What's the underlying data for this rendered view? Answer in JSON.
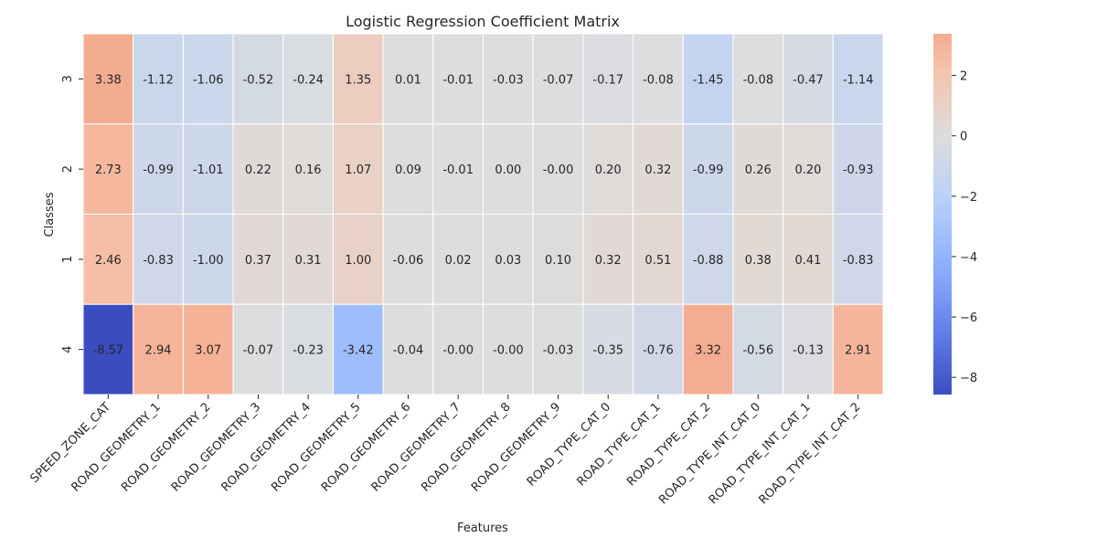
{
  "chart_data": {
    "type": "heatmap",
    "title": "Logistic Regression Coefficient Matrix",
    "xlabel": "Features",
    "ylabel": "Classes",
    "x_categories": [
      "SPEED_ZONE_CAT",
      "ROAD_GEOMETRY_1",
      "ROAD_GEOMETRY_2",
      "ROAD_GEOMETRY_3",
      "ROAD_GEOMETRY_4",
      "ROAD_GEOMETRY_5",
      "ROAD_GEOMETRY_6",
      "ROAD_GEOMETRY_7",
      "ROAD_GEOMETRY_8",
      "ROAD_GEOMETRY_9",
      "ROAD_TYPE_CAT_0",
      "ROAD_TYPE_CAT_1",
      "ROAD_TYPE_CAT_2",
      "ROAD_TYPE_INT_CAT_0",
      "ROAD_TYPE_INT_CAT_1",
      "ROAD_TYPE_INT_CAT_2"
    ],
    "y_categories": [
      "3",
      "2",
      "1",
      "4"
    ],
    "values": [
      [
        "3.38",
        "-1.12",
        "-1.06",
        "-0.52",
        "-0.24",
        "1.35",
        "0.01",
        "-0.01",
        "-0.03",
        "-0.07",
        "-0.17",
        "-0.08",
        "-1.45",
        "-0.08",
        "-0.47",
        "-1.14"
      ],
      [
        "2.73",
        "-0.99",
        "-1.01",
        "0.22",
        "0.16",
        "1.07",
        "0.09",
        "-0.01",
        "0.00",
        "-0.00",
        "0.20",
        "0.32",
        "-0.99",
        "0.26",
        "0.20",
        "-0.93"
      ],
      [
        "2.46",
        "-0.83",
        "-1.00",
        "0.37",
        "0.31",
        "1.00",
        "-0.06",
        "0.02",
        "0.03",
        "0.10",
        "0.32",
        "0.51",
        "-0.88",
        "0.38",
        "0.41",
        "-0.83"
      ],
      [
        "-8.57",
        "2.94",
        "3.07",
        "-0.07",
        "-0.23",
        "-3.42",
        "-0.04",
        "-0.00",
        "-0.00",
        "-0.03",
        "-0.35",
        "-0.76",
        "3.32",
        "-0.56",
        "-0.13",
        "2.91"
      ]
    ],
    "colormap": "coolwarm",
    "colorbar": {
      "min": -8.57,
      "max": 3.38,
      "ticks": [
        2,
        0,
        -2,
        -4,
        -6,
        -8
      ],
      "tick_labels": [
        "2",
        "0",
        "−2",
        "−4",
        "−6",
        "−8"
      ]
    },
    "grid": true,
    "legend": "colorbar-right"
  }
}
